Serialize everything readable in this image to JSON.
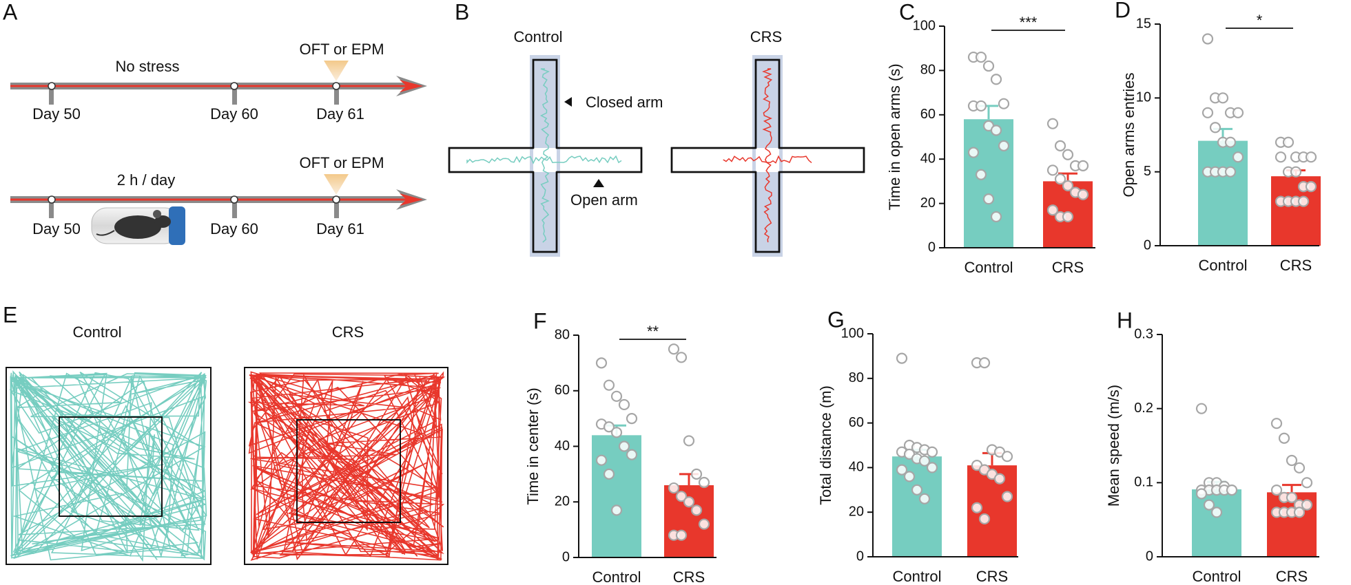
{
  "panel_a": {
    "label": "A",
    "timelines": [
      {
        "caption": "No stress",
        "test": "OFT or EPM",
        "days": [
          "Day 50",
          "Day 60",
          "Day 61"
        ]
      },
      {
        "caption": "2 h / day",
        "test": "OFT or EPM",
        "days": [
          "Day 50",
          "Day 60",
          "Day 61"
        ]
      }
    ]
  },
  "panel_b": {
    "label": "B",
    "groups": [
      "Control",
      "CRS"
    ],
    "annotations": [
      "Closed arm",
      "Open arm"
    ]
  },
  "panel_e": {
    "label": "E",
    "groups": [
      "Control",
      "CRS"
    ]
  },
  "chart_data": [
    {
      "type": "bar",
      "panel": "C",
      "ylabel": "Time in open arms (s)",
      "categories": [
        "Control",
        "CRS"
      ],
      "values": [
        58,
        30
      ],
      "errors": [
        6,
        3.5
      ],
      "colors": [
        "#76cdc0",
        "#e8372c"
      ],
      "point_color": "#a6a6a6",
      "points": [
        [
          86,
          86,
          82,
          76,
          65,
          64,
          64,
          55,
          53,
          46,
          43,
          33,
          22,
          14
        ],
        [
          56,
          46,
          42,
          37,
          37,
          35,
          31,
          28,
          25,
          24,
          17,
          14,
          14
        ]
      ],
      "ylim": [
        0,
        100
      ],
      "yticks": [
        0,
        20,
        40,
        60,
        80,
        100
      ],
      "significance": "***"
    },
    {
      "type": "bar",
      "panel": "D",
      "ylabel": "Open arms entries",
      "categories": [
        "Control",
        "CRS"
      ],
      "values": [
        7.1,
        4.7
      ],
      "errors": [
        0.8,
        0.4
      ],
      "colors": [
        "#76cdc0",
        "#e8372c"
      ],
      "point_color": "#a6a6a6",
      "points": [
        [
          14,
          10,
          10,
          9,
          9,
          9,
          8,
          7,
          7,
          6,
          5,
          5,
          5,
          5
        ],
        [
          7,
          7,
          6,
          6,
          6,
          6,
          5,
          5,
          4,
          4,
          3,
          3,
          3,
          3
        ]
      ],
      "ylim": [
        0,
        15
      ],
      "yticks": [
        0,
        5,
        10,
        15
      ],
      "significance": "*"
    },
    {
      "type": "bar",
      "panel": "F",
      "ylabel": "Time in center (s)",
      "categories": [
        "Control",
        "CRS"
      ],
      "values": [
        44,
        26
      ],
      "errors": [
        3.5,
        4
      ],
      "colors": [
        "#76cdc0",
        "#e8372c"
      ],
      "point_color": "#a6a6a6",
      "points": [
        [
          70,
          62,
          58,
          55,
          50,
          48,
          47,
          45,
          40,
          37,
          35,
          30,
          17
        ],
        [
          75,
          72,
          42,
          30,
          27,
          25,
          22,
          20,
          17,
          12,
          8,
          8
        ]
      ],
      "ylim": [
        0,
        80
      ],
      "yticks": [
        0,
        20,
        40,
        60,
        80
      ],
      "significance": "**"
    },
    {
      "type": "bar",
      "panel": "G",
      "ylabel": "Total distance (m)",
      "categories": [
        "Control",
        "CRS"
      ],
      "values": [
        45,
        41
      ],
      "errors": [
        3,
        5.5
      ],
      "colors": [
        "#76cdc0",
        "#e8372c"
      ],
      "point_color": "#a6a6a6",
      "points": [
        [
          89,
          50,
          49,
          48,
          47,
          47,
          46,
          44,
          43,
          40,
          39,
          36,
          30,
          26
        ],
        [
          87,
          87,
          48,
          47,
          45,
          41,
          39,
          37,
          35,
          27,
          22,
          17
        ]
      ],
      "ylim": [
        0,
        100
      ],
      "yticks": [
        0,
        20,
        40,
        60,
        80,
        100
      ]
    },
    {
      "type": "bar",
      "panel": "H",
      "ylabel": "Mean speed (m/s)",
      "categories": [
        "Control",
        "CRS"
      ],
      "values": [
        0.091,
        0.087
      ],
      "errors": [
        0.01,
        0.01
      ],
      "colors": [
        "#76cdc0",
        "#e8372c"
      ],
      "point_color": "#a6a6a6",
      "points": [
        [
          0.2,
          0.1,
          0.1,
          0.095,
          0.09,
          0.09,
          0.09,
          0.09,
          0.09,
          0.09,
          0.085,
          0.07,
          0.06
        ],
        [
          0.18,
          0.16,
          0.13,
          0.12,
          0.1,
          0.09,
          0.08,
          0.08,
          0.07,
          0.07,
          0.06,
          0.06,
          0.06,
          0.06
        ]
      ],
      "ylim": [
        0,
        0.3
      ],
      "yticks": [
        0,
        0.1,
        0.2,
        0.3
      ]
    }
  ]
}
